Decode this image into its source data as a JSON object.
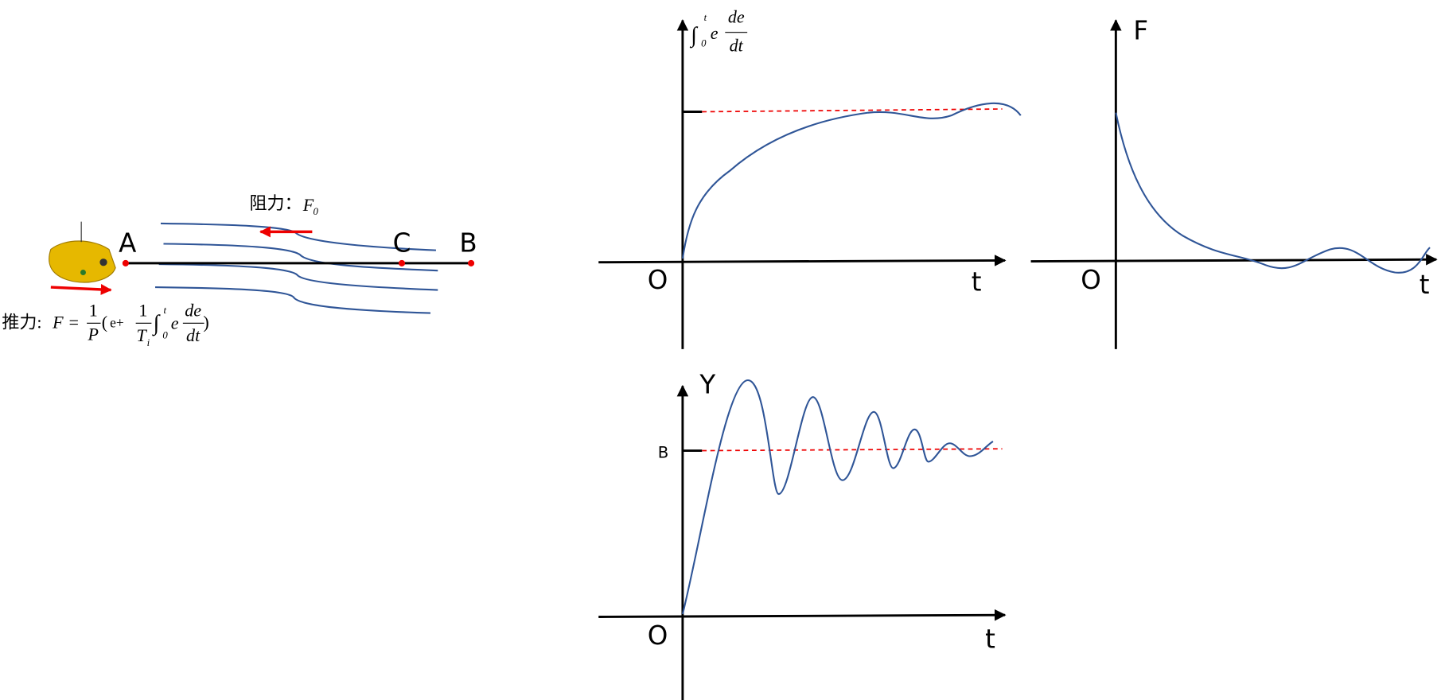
{
  "scene": {
    "resistance_label": "阻力：",
    "resistance_symbol": "F",
    "resistance_subscript": "0",
    "points": [
      "A",
      "C",
      "B"
    ],
    "thrust_label": "推力:",
    "formula": {
      "lhs": "F =",
      "p_num": "1",
      "p_den": "P",
      "open": "(",
      "e_plus": "e+",
      "ti_num": "1",
      "ti_den": "T",
      "ti_sub": "i",
      "integral": "∫",
      "int_lower": "0",
      "int_upper": "t",
      "integrand": "e",
      "d_num": "de",
      "d_den": "dt",
      "close": ")"
    }
  },
  "charts": [
    {
      "y_label": {
        "integral": "∫",
        "lower": "0",
        "upper": "t",
        "integrand": "e",
        "d_num": "de",
        "d_den": "dt"
      },
      "origin": "O",
      "x_label": "t"
    },
    {
      "y_label": "F",
      "origin": "O",
      "x_label": "t"
    },
    {
      "y_label": "Y",
      "origin": "O",
      "x_label": "t",
      "reference_label": "B"
    }
  ]
}
